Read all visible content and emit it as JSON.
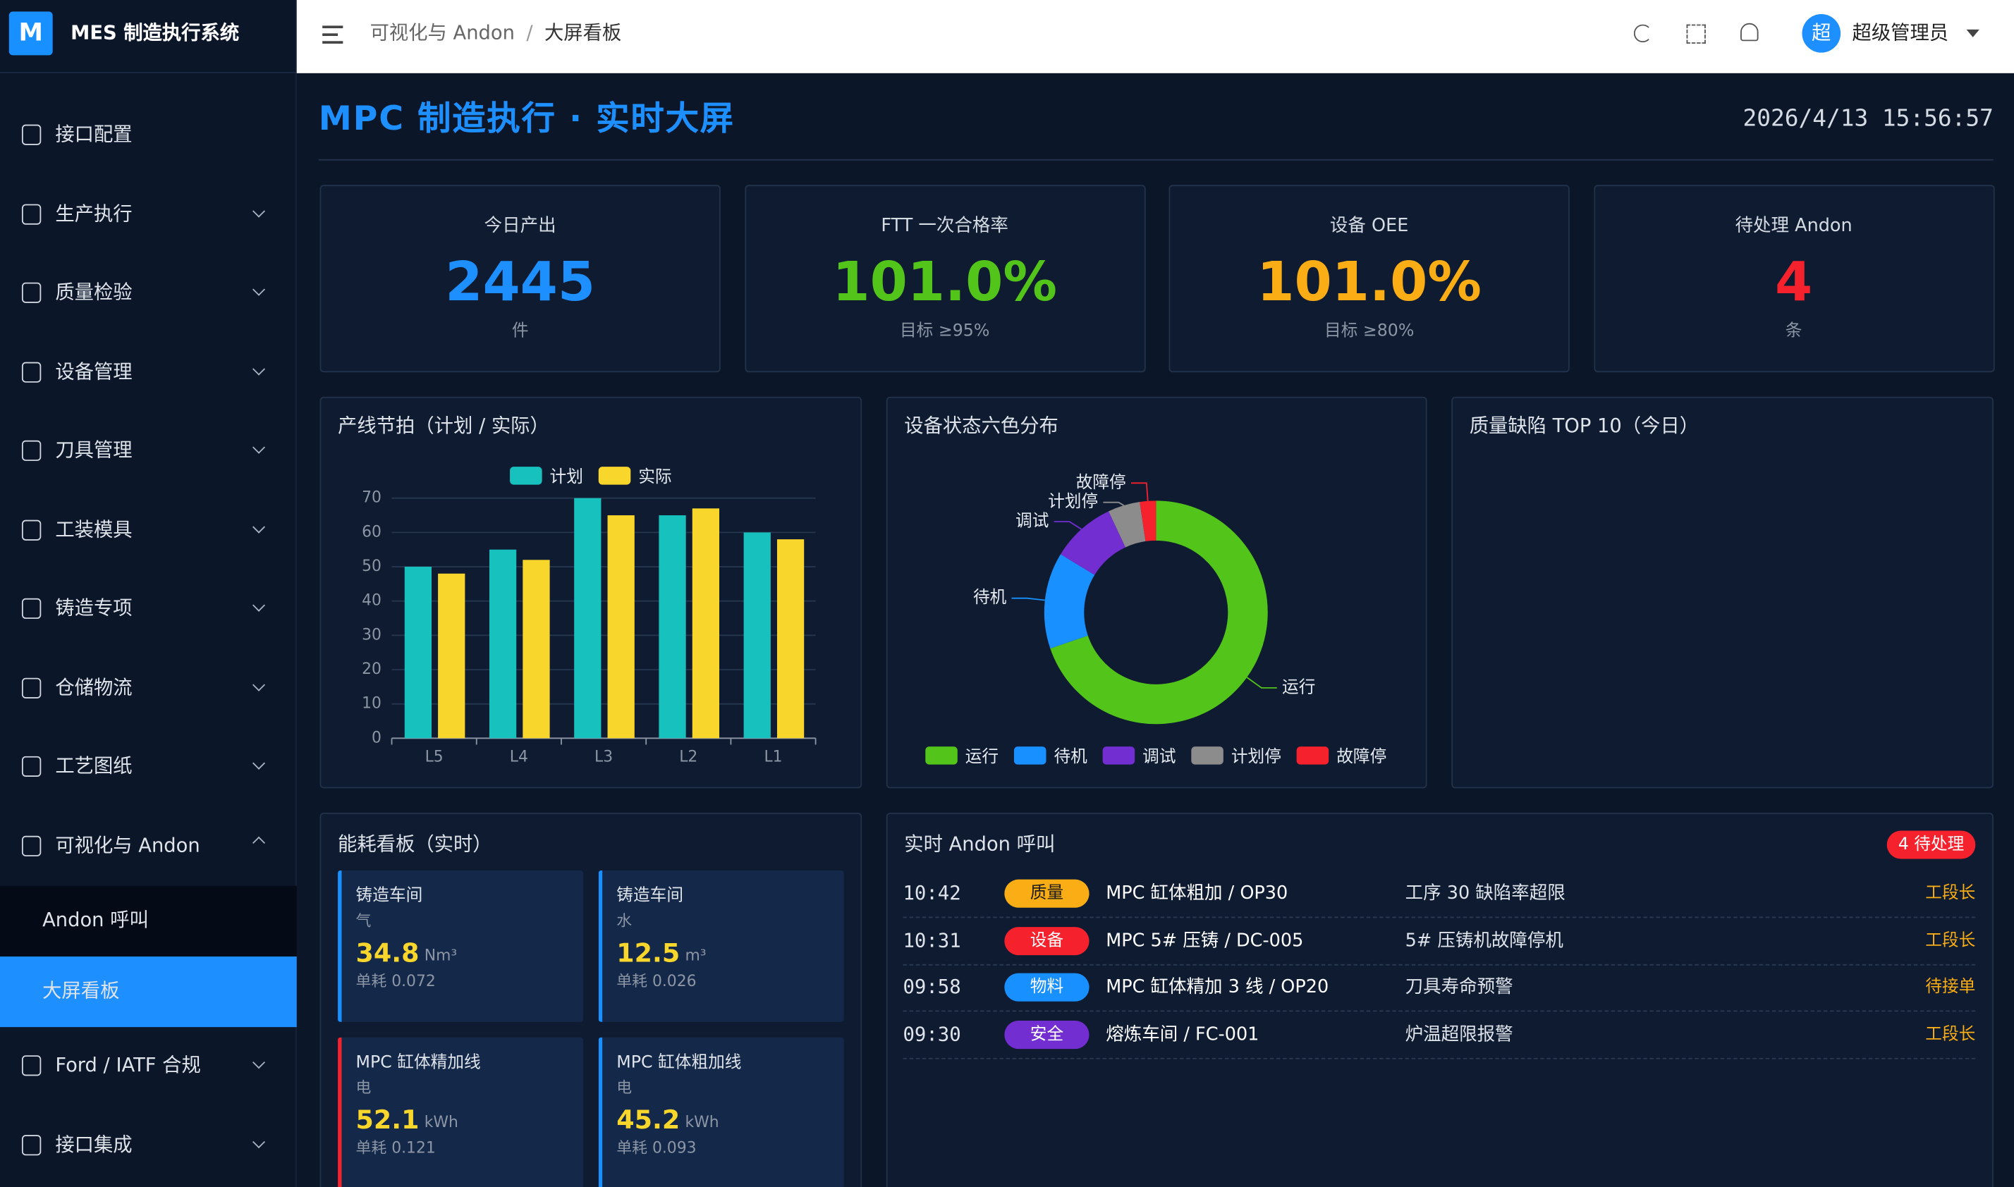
{
  "sidebar": {
    "logo": "M",
    "brand": "MES 制造执行系统",
    "menu": [
      {
        "label": "接口配置"
      },
      {
        "label": "生产执行",
        "arrow": "down"
      },
      {
        "label": "质量检验",
        "arrow": "down"
      },
      {
        "label": "设备管理",
        "arrow": "down"
      },
      {
        "label": "刀具管理",
        "arrow": "down"
      },
      {
        "label": "工装模具",
        "arrow": "down"
      },
      {
        "label": "铸造专项",
        "arrow": "down"
      },
      {
        "label": "仓储物流",
        "arrow": "down"
      },
      {
        "label": "工艺图纸",
        "arrow": "down"
      },
      {
        "label": "可视化与 Andon",
        "arrow": "up"
      }
    ],
    "submenu": [
      {
        "label": "Andon 呼叫"
      },
      {
        "label": "大屏看板",
        "active": true
      }
    ],
    "menu_after": [
      {
        "label": "Ford / IATF 合规",
        "arrow": "down"
      },
      {
        "label": "接口集成",
        "arrow": "down"
      }
    ]
  },
  "header": {
    "breadcrumb": [
      "可视化与 Andon",
      "大屏看板"
    ],
    "separator": "/",
    "avatar": "超",
    "user": "超级管理员"
  },
  "dashboard": {
    "title": "MPC 制造执行 · 实时大屏",
    "datetime": "2026/4/13 15:56:57",
    "kpis": [
      {
        "label": "今日产出",
        "value": "2445",
        "sub": "件",
        "color": "#1e8fff"
      },
      {
        "label": "FTT 一次合格率",
        "value": "101.0%",
        "sub": "目标 ≥95%",
        "color": "#52c41a"
      },
      {
        "label": "设备 OEE",
        "value": "101.0%",
        "sub": "目标 ≥80%",
        "color": "#faad14"
      },
      {
        "label": "待处理 Andon",
        "value": "4",
        "sub": "条",
        "color": "#f5222d"
      }
    ],
    "bar_chart": {
      "type": "bar",
      "title": "产线节拍（计划 / 实际）",
      "categories": [
        "L5",
        "L4",
        "L3",
        "L2",
        "L1"
      ],
      "series": [
        {
          "name": "计划",
          "color": "#17c2be",
          "values": [
            50,
            55,
            70,
            65,
            60
          ]
        },
        {
          "name": "实际",
          "color": "#f9d62c",
          "values": [
            48,
            52,
            65,
            67,
            58
          ]
        }
      ],
      "ylim": [
        0,
        70
      ],
      "yticks": [
        0,
        10,
        20,
        30,
        40,
        50,
        60,
        70
      ],
      "grid": true
    },
    "donut_chart": {
      "type": "pie",
      "title": "设备状态六色分布",
      "categories": [
        "运行",
        "待机",
        "调试",
        "计划停",
        "故障停"
      ],
      "values": [
        30,
        6,
        4,
        2,
        1
      ],
      "colors": [
        "#52c41a",
        "#1890ff",
        "#722ed1",
        "#8c8c8c",
        "#f5222d"
      ]
    },
    "quality_panel": {
      "title": "质量缺陷 TOP 10（今日）"
    },
    "energy": {
      "title": "能耗看板（实时）",
      "cards": [
        {
          "workshop": "铸造车间",
          "medium": "气",
          "value": "34.8",
          "unit": "Nm³",
          "rate": "单耗 0.072",
          "accent": "#1890ff"
        },
        {
          "workshop": "铸造车间",
          "medium": "水",
          "value": "12.5",
          "unit": "m³",
          "rate": "单耗 0.026",
          "accent": "#1890ff"
        },
        {
          "workshop": "MPC 缸体精加线",
          "medium": "电",
          "value": "52.1",
          "unit": "kWh",
          "rate": "单耗 0.121",
          "accent": "#f5222d"
        },
        {
          "workshop": "MPC 缸体粗加线",
          "medium": "电",
          "value": "45.2",
          "unit": "kWh",
          "rate": "单耗 0.093",
          "accent": "#1890ff"
        }
      ]
    },
    "andon": {
      "title": "实时 Andon 呼叫",
      "badge": "4 待处理",
      "rows": [
        {
          "time": "10:42",
          "tag": "质量",
          "tag_color": "#faad14",
          "station": "MPC 缸体粗加 / OP30",
          "issue": "工序 30 缺陷率超限",
          "status": "工段长"
        },
        {
          "time": "10:31",
          "tag": "设备",
          "tag_color": "#f5222d",
          "station": "MPC 5# 压铸 / DC-005",
          "issue": "5# 压铸机故障停机",
          "status": "工段长"
        },
        {
          "time": "09:58",
          "tag": "物料",
          "tag_color": "#1890ff",
          "station": "MPC 缸体精加 3 线 / OP20",
          "issue": "刀具寿命预警",
          "status": "待接单"
        },
        {
          "time": "09:30",
          "tag": "安全",
          "tag_color": "#722ed1",
          "station": "熔炼车间 / FC-001",
          "issue": "炉温超限报警",
          "status": "工段长"
        }
      ]
    }
  }
}
